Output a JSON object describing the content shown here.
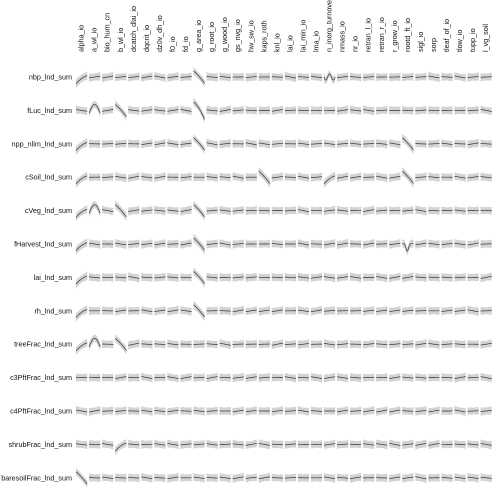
{
  "chart_data": {
    "type": "line",
    "description_kind": "small-multiples sensitivity grid",
    "columns": [
      "alpha_io",
      "a_wl_io",
      "bio_hum_cn",
      "b_wl_io",
      "dcatch_dlai_io",
      "dqcrit_io",
      "dz0v_dh_io",
      "f0_io",
      "fd_io",
      "g_area_io",
      "g_root_io",
      "g_wood_io",
      "gs_nvg_io",
      "hw_sw_io",
      "kaps_roth",
      "knl_io",
      "lai_io",
      "lai_min_io",
      "lma_io",
      "n_inorg_turnover",
      "nmass_io",
      "nr_io",
      "retran_l_io",
      "retran_r_io",
      "r_grow_io",
      "rootd_ft_io",
      "sigl_io",
      "sorp",
      "tleaf_of_io",
      "tlow_io",
      "tupp_io",
      "l_vg_soil"
    ],
    "rows": [
      "nbp_lnd_sum",
      "fLuc_lnd_sum",
      "npp_nlim_lnd_sum",
      "cSoil_lnd_sum",
      "cVeg_lnd_sum",
      "fHarvest_lnd_sum",
      "lai_lnd_sum",
      "rh_lnd_sum",
      "treeFrac_lnd_sum",
      "c3PftFrac_lnd_sum",
      "c4PftFrac_lnd_sum",
      "shrubFrac_lnd_sum",
      "baresoilFrac_lnd_sum"
    ],
    "x_range": [
      0,
      1
    ],
    "band_color": "#d3d3d3",
    "line_color": "#333333",
    "strong_effects": [
      {
        "row": "nbp_lnd_sum",
        "column": "alpha_io",
        "shape": "rise"
      },
      {
        "row": "nbp_lnd_sum",
        "column": "g_area_io",
        "shape": "fall"
      },
      {
        "row": "nbp_lnd_sum",
        "column": "n_inorg_turnover",
        "shape": "wiggle"
      },
      {
        "row": "fLuc_lnd_sum",
        "column": "a_wl_io",
        "shape": "hump"
      },
      {
        "row": "fLuc_lnd_sum",
        "column": "b_wl_io",
        "shape": "fall"
      },
      {
        "row": "fLuc_lnd_sum",
        "column": "g_area_io",
        "shape": "steep-fall"
      },
      {
        "row": "npp_nlim_lnd_sum",
        "column": "alpha_io",
        "shape": "rise"
      },
      {
        "row": "npp_nlim_lnd_sum",
        "column": "g_area_io",
        "shape": "fall"
      },
      {
        "row": "npp_nlim_lnd_sum",
        "column": "rootd_ft_io",
        "shape": "fall"
      },
      {
        "row": "cSoil_lnd_sum",
        "column": "alpha_io",
        "shape": "rise"
      },
      {
        "row": "cSoil_lnd_sum",
        "column": "kaps_roth",
        "shape": "fall"
      },
      {
        "row": "cSoil_lnd_sum",
        "column": "n_inorg_turnover",
        "shape": "rise"
      },
      {
        "row": "cSoil_lnd_sum",
        "column": "rootd_ft_io",
        "shape": "fall"
      },
      {
        "row": "cVeg_lnd_sum",
        "column": "alpha_io",
        "shape": "rise"
      },
      {
        "row": "cVeg_lnd_sum",
        "column": "a_wl_io",
        "shape": "hump"
      },
      {
        "row": "cVeg_lnd_sum",
        "column": "b_wl_io",
        "shape": "fall"
      },
      {
        "row": "cVeg_lnd_sum",
        "column": "g_area_io",
        "shape": "fall"
      },
      {
        "row": "fHarvest_lnd_sum",
        "column": "alpha_io",
        "shape": "rise"
      },
      {
        "row": "fHarvest_lnd_sum",
        "column": "g_area_io",
        "shape": "fall"
      },
      {
        "row": "fHarvest_lnd_sum",
        "column": "rootd_ft_io",
        "shape": "dip"
      },
      {
        "row": "lai_lnd_sum",
        "column": "alpha_io",
        "shape": "rise"
      },
      {
        "row": "lai_lnd_sum",
        "column": "g_area_io",
        "shape": "fall"
      },
      {
        "row": "rh_lnd_sum",
        "column": "alpha_io",
        "shape": "rise"
      },
      {
        "row": "rh_lnd_sum",
        "column": "g_area_io",
        "shape": "fall"
      },
      {
        "row": "treeFrac_lnd_sum",
        "column": "alpha_io",
        "shape": "rise"
      },
      {
        "row": "treeFrac_lnd_sum",
        "column": "a_wl_io",
        "shape": "hump"
      },
      {
        "row": "treeFrac_lnd_sum",
        "column": "b_wl_io",
        "shape": "fall"
      },
      {
        "row": "shrubFrac_lnd_sum",
        "column": "b_wl_io",
        "shape": "rise"
      },
      {
        "row": "baresoilFrac_lnd_sum",
        "column": "alpha_io",
        "shape": "fall"
      }
    ]
  }
}
